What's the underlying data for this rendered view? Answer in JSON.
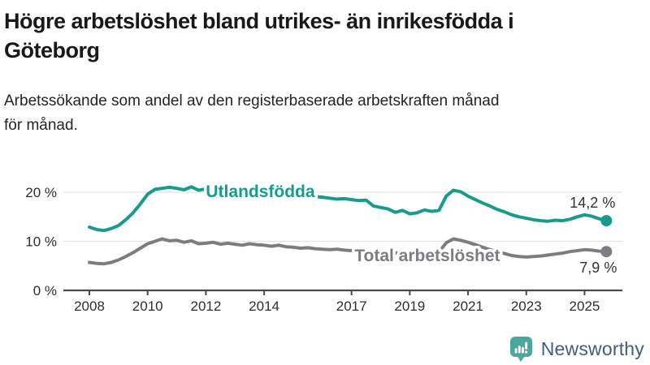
{
  "header": {
    "title": "Högre arbetslöshet bland utrikes- än inrikesfödda i\nGöteborg",
    "subtitle": "Arbetssökande som andel av den registerbaserade arbetskraften månad\nför månad."
  },
  "colors": {
    "title_text": "#191919",
    "subtitle_text": "#242424",
    "axis_line": "#4A4A4A",
    "gridline": "#E3E3E3",
    "tick_text": "#2E2E2E",
    "value_label_text": "#333333",
    "teal_series": "#169B8C",
    "gray_series": "#7C7D80",
    "logo_icon_teal": "#4BA69F",
    "logo_text_color": "#3F5E7E"
  },
  "chart_data": {
    "type": "line",
    "title": "Högre arbetslöshet bland utrikes- än inrikesfödda i Göteborg",
    "subtitle": "Arbetssökande som andel av den registerbaserade arbetskraften månad för månad.",
    "xlabel": "",
    "ylabel": "",
    "grid": "horizontal",
    "legend_position": "inline-labels-on-lines",
    "ylim": [
      0,
      22.5
    ],
    "xlim": [
      2007.1,
      2026.3
    ],
    "x_unit": "year (monthly data)",
    "y_unit": "percent",
    "x_start": 2008.0,
    "x_step_years": 0.25,
    "y_ticks": [
      {
        "value": 0,
        "label": "0 %"
      },
      {
        "value": 10,
        "label": "10 %"
      },
      {
        "value": 20,
        "label": "20 %"
      }
    ],
    "x_ticks": [
      {
        "value": 2008,
        "label": "2008"
      },
      {
        "value": 2010,
        "label": "2010"
      },
      {
        "value": 2012,
        "label": "2012"
      },
      {
        "value": 2014,
        "label": "2014"
      },
      {
        "value": 2017,
        "label": "2017"
      },
      {
        "value": 2019,
        "label": "2019"
      },
      {
        "value": 2021,
        "label": "2021"
      },
      {
        "value": 2023,
        "label": "2023"
      },
      {
        "value": 2025,
        "label": "2025"
      }
    ],
    "series": [
      {
        "name": "Utlandsfödda",
        "color": "#169B8C",
        "value_label": "14,2 %",
        "end_value": 14.2,
        "label_anchor": {
          "year": 2012.0,
          "value": 19.0
        },
        "values": [
          12.9,
          12.4,
          12.2,
          12.6,
          13.2,
          14.4,
          15.8,
          17.6,
          19.6,
          20.6,
          20.8,
          21.0,
          20.8,
          20.5,
          21.1,
          20.4,
          20.7,
          20.9,
          20.4,
          20.6,
          20.4,
          20.2,
          20.5,
          20.1,
          20.0,
          19.8,
          19.9,
          19.6,
          19.5,
          19.3,
          19.4,
          19.1,
          19.0,
          18.8,
          18.6,
          18.7,
          18.5,
          18.3,
          18.4,
          17.2,
          16.9,
          16.6,
          15.9,
          16.3,
          15.6,
          15.8,
          16.4,
          16.1,
          16.3,
          19.2,
          20.4,
          20.1,
          19.2,
          18.5,
          17.8,
          17.2,
          16.5,
          16.0,
          15.4,
          15.0,
          14.7,
          14.4,
          14.2,
          14.1,
          14.3,
          14.2,
          14.5,
          15.0,
          15.4,
          15.1,
          14.6,
          14.2
        ]
      },
      {
        "name": "Total arbetslöshet",
        "color": "#7C7D80",
        "value_label": "7,9 %",
        "end_value": 7.9,
        "label_anchor": {
          "year": 2017.1,
          "value": 5.95
        },
        "values": [
          5.7,
          5.5,
          5.4,
          5.7,
          6.2,
          6.9,
          7.7,
          8.6,
          9.5,
          10.0,
          10.5,
          10.1,
          10.2,
          9.8,
          10.1,
          9.5,
          9.6,
          9.8,
          9.4,
          9.6,
          9.4,
          9.2,
          9.5,
          9.3,
          9.2,
          9.0,
          9.2,
          8.9,
          8.8,
          8.6,
          8.7,
          8.5,
          8.4,
          8.3,
          8.4,
          8.2,
          8.1,
          8.0,
          8.1,
          7.9,
          7.8,
          7.7,
          7.6,
          7.7,
          7.6,
          7.5,
          7.7,
          7.6,
          7.8,
          9.7,
          10.5,
          10.2,
          9.8,
          9.3,
          8.8,
          8.3,
          7.9,
          7.5,
          7.1,
          6.9,
          6.8,
          6.9,
          7.0,
          7.2,
          7.4,
          7.6,
          7.9,
          8.1,
          8.3,
          8.2,
          8.0,
          7.9
        ]
      }
    ]
  },
  "branding": {
    "logo_text": "Newsworthy",
    "logo_icon": "newsworthy-bar-chart-pin-icon"
  }
}
